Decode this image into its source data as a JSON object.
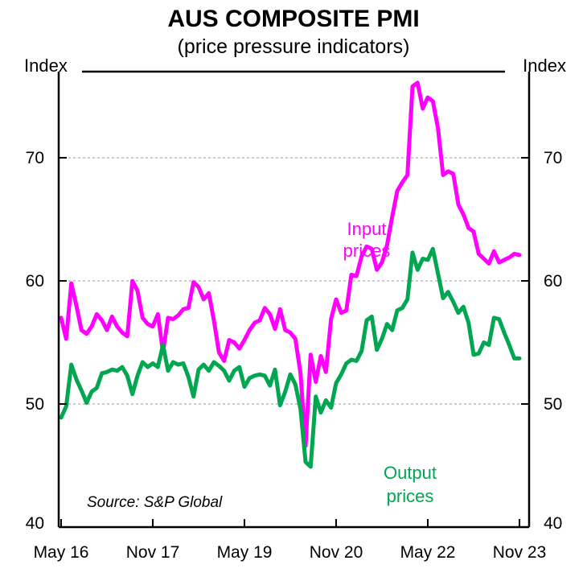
{
  "chart_data": {
    "type": "line",
    "title": "AUS COMPOSITE PMI",
    "subtitle": "(price pressure indicators)",
    "ylabel_left": "Index",
    "ylabel_right": "Index",
    "source": "Source: S&P Global",
    "ylim": [
      40,
      77
    ],
    "yticks": [
      40,
      50,
      60,
      70
    ],
    "grid": true,
    "xticks": [
      {
        "label": "May 16",
        "month_index": 0
      },
      {
        "label": "Nov 17",
        "month_index": 18
      },
      {
        "label": "May 19",
        "month_index": 36
      },
      {
        "label": "Nov 20",
        "month_index": 54
      },
      {
        "label": "May 22",
        "month_index": 72
      },
      {
        "label": "Nov 23",
        "month_index": 90
      }
    ],
    "start_month": "May 16",
    "end_month": "Nov 23",
    "series": [
      {
        "name": "Input prices",
        "label_lines": [
          "Input",
          "prices"
        ],
        "color": "#ff00ff",
        "values": [
          57.0,
          55.3,
          59.8,
          58.0,
          56.0,
          55.7,
          56.3,
          57.3,
          56.8,
          56.0,
          57.1,
          56.3,
          55.8,
          55.5,
          60.0,
          59.2,
          57.0,
          56.5,
          56.3,
          57.3,
          54.2,
          57.0,
          56.9,
          57.2,
          57.7,
          57.8,
          59.9,
          59.5,
          58.5,
          59.0,
          56.8,
          54.2,
          53.5,
          55.2,
          55.0,
          54.5,
          55.2,
          56.0,
          56.6,
          56.8,
          57.8,
          57.3,
          56.1,
          57.7,
          56.0,
          55.8,
          55.3,
          52.5,
          46.6,
          54.0,
          51.8,
          53.9,
          52.6,
          56.9,
          58.5,
          57.4,
          57.6,
          60.5,
          60.4,
          62.0,
          62.8,
          62.6,
          60.9,
          61.5,
          62.9,
          65.2,
          67.3,
          68.0,
          68.6,
          75.8,
          76.1,
          74.0,
          74.9,
          74.6,
          72.4,
          68.6,
          68.9,
          68.7,
          66.2,
          65.4,
          64.3,
          64.0,
          62.2,
          61.8,
          61.4,
          62.4,
          61.5,
          61.7,
          61.9,
          62.2,
          62.1
        ]
      },
      {
        "name": "Output prices",
        "label_lines": [
          "Output",
          "prices"
        ],
        "color": "#00a650",
        "values": [
          48.9,
          49.8,
          53.2,
          52.0,
          51.1,
          50.1,
          51.0,
          51.3,
          52.5,
          52.6,
          52.8,
          52.7,
          53.0,
          52.3,
          50.8,
          52.3,
          53.4,
          53.0,
          53.3,
          53.0,
          54.8,
          52.7,
          53.4,
          53.2,
          53.3,
          52.2,
          50.6,
          52.8,
          53.2,
          52.7,
          53.4,
          53.1,
          52.7,
          51.9,
          52.7,
          53.0,
          51.4,
          52.1,
          52.3,
          52.4,
          52.3,
          51.5,
          52.8,
          49.9,
          51.0,
          52.4,
          51.6,
          49.6,
          45.3,
          44.9,
          50.6,
          49.3,
          50.3,
          49.7,
          51.7,
          52.4,
          53.3,
          53.6,
          53.5,
          54.3,
          56.8,
          57.1,
          54.4,
          55.3,
          56.5,
          56.0,
          57.6,
          57.8,
          58.5,
          62.3,
          60.9,
          61.8,
          61.7,
          62.6,
          60.6,
          58.6,
          59.1,
          58.3,
          57.4,
          57.9,
          56.6,
          54.0,
          54.1,
          55.0,
          54.8,
          57.0,
          56.9,
          55.8,
          54.8,
          53.7,
          53.7
        ]
      }
    ]
  }
}
